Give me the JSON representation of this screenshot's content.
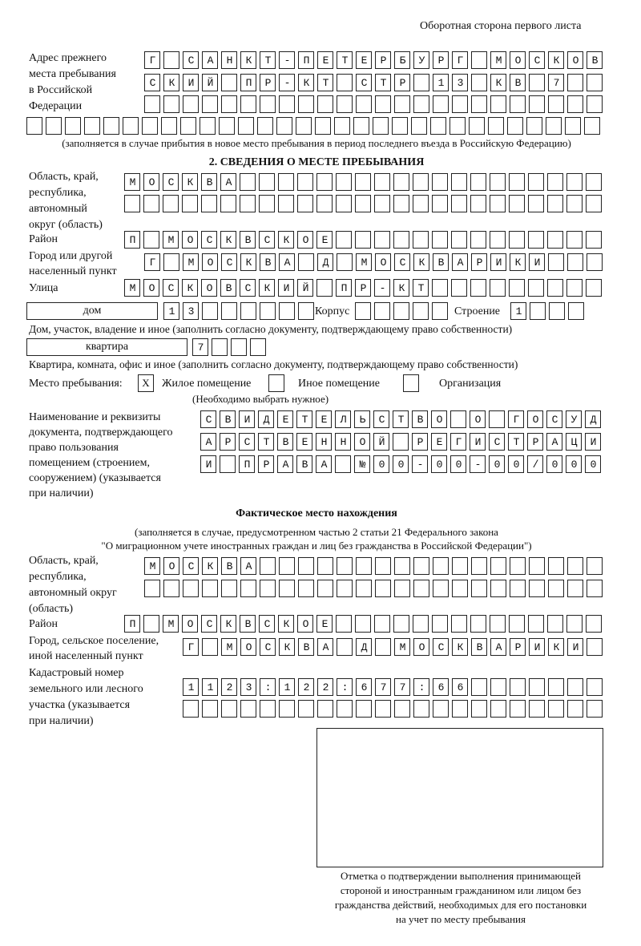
{
  "header": {
    "side_note": "Оборотная сторона первого листа"
  },
  "previous_address": {
    "label": [
      "Адрес прежнего",
      "места пребывания",
      "в Российской",
      "Федерации"
    ],
    "rows": [
      "Г САНКТ-ПЕТЕРБУРГ МОСКОВ",
      "СКИЙ ПР-КТ СТР 13 КВ 7",
      "",
      ""
    ],
    "note": "(заполняется в случае прибытия в новое место пребывания в период последнего въезда в Российскую Федерацию)"
  },
  "section2": {
    "title": "2. СВЕДЕНИЯ О МЕСТЕ ПРЕБЫВАНИЯ",
    "region_label": [
      "Область, край,",
      "республика,",
      "автономный",
      "округ (область)"
    ],
    "region": [
      "МОСКВА",
      ""
    ],
    "district_label": "Район",
    "district": "П МОСКВСКОЕ",
    "city_label": [
      "Город или другой",
      "населенный пункт"
    ],
    "city": "Г МОСКВА Д МОСКВАРИКИ",
    "street_label": "Улица",
    "street": "МОСКОВСКИЙ ПР-КТ",
    "house_type": "дом",
    "house_number": "13",
    "building_label": "Корпус",
    "building": "",
    "structure_label": "Строение",
    "structure": "1",
    "house_hint": "Дом, участок, владение и иное (заполнить согласно документу, подтверждающему право собственности)",
    "apartment_type": "квартира",
    "apartment_number": "7",
    "apartment_hint": "Квартира, комната, офис и иное (заполнить согласно документу, подтверждающему право собственности)",
    "stay_place_label": "Место пребывания:",
    "options": [
      {
        "label": "Жилое помещение",
        "mark": "X"
      },
      {
        "label": "Иное помещение",
        "mark": ""
      },
      {
        "label": "Организация",
        "mark": ""
      }
    ],
    "choose_hint": "(Необходимо выбрать нужное)",
    "doc_label": [
      "Наименование и реквизиты",
      "документа, подтверждающего",
      "право пользования",
      "помещением (строением,",
      "сооружением) (указывается",
      "при наличии)"
    ],
    "doc": [
      "СВИДЕТЕЛЬСТВО О ГОСУД",
      "АРСТВЕННОЙ РЕГИСТРАЦИ",
      "И ПРАВА №00-00-00/000"
    ]
  },
  "actual": {
    "title": "Фактическое место нахождения",
    "note": [
      "(заполняется в случае, предусмотренном частью 2 статьи 21 Федерального закона",
      "\"О миграционном учете иностранных граждан и лиц без гражданства в Российской Федерации\")"
    ],
    "region_label": [
      "Область, край,",
      "республика,",
      "автономный округ",
      "(область)"
    ],
    "region": [
      "МОСКВА",
      ""
    ],
    "district_label": "Район",
    "district": "П МОСКВСКОЕ",
    "city_label": [
      "Город, сельское поселение,",
      "иной населенный пункт"
    ],
    "city": "Г МОСКВА Д МОСКВАРИКИ",
    "cadastral_label": [
      "Кадастровый номер",
      "земельного или лесного",
      "участка (указывается",
      "при наличии)"
    ],
    "cadastral": [
      "1123:122:677:66",
      ""
    ]
  },
  "confirmation": {
    "caption": [
      "Отметка о подтверждении выполнения принимающей",
      "стороной и иностранным гражданином или лицом без",
      "гражданства действий, необходимых для его постановки",
      "на учет по месту пребывания"
    ]
  }
}
